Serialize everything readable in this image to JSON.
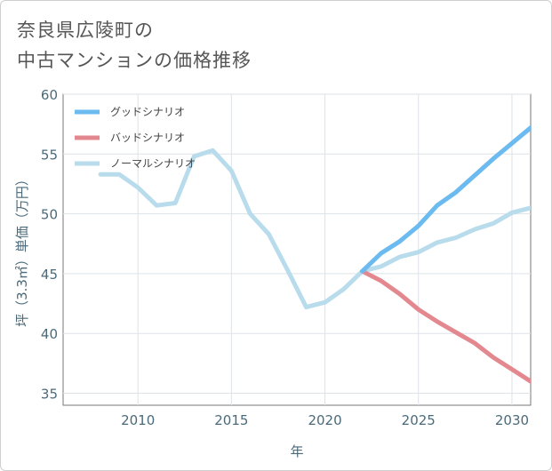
{
  "title_line1": "奈良県広陵町の",
  "title_line2": "中古マンションの価格推移",
  "chart_data": {
    "type": "line",
    "xlabel": "年",
    "ylabel": "坪（3.3㎡）単価（万円）",
    "xlim": [
      2006,
      2031
    ],
    "ylim": [
      34,
      60
    ],
    "x_ticks": [
      2010,
      2015,
      2020,
      2025,
      2030
    ],
    "y_ticks": [
      35,
      40,
      45,
      50,
      55,
      60
    ],
    "x_tick_labels": [
      "2010",
      "2015",
      "2020",
      "2025",
      "2030"
    ],
    "y_tick_labels": [
      "35",
      "40",
      "45",
      "50",
      "55",
      "60"
    ],
    "grid": true,
    "legend_position": "top-left",
    "series": [
      {
        "name": "グッドシナリオ",
        "color": "#6bbaf0",
        "x": [
          2022,
          2023,
          2024,
          2025,
          2026,
          2027,
          2028,
          2029,
          2030,
          2031
        ],
        "y": [
          45.2,
          46.7,
          47.7,
          49.0,
          50.7,
          51.8,
          53.2,
          54.6,
          55.9,
          57.2
        ]
      },
      {
        "name": "バッドシナリオ",
        "color": "#e3888f",
        "x": [
          2022,
          2023,
          2024,
          2025,
          2026,
          2027,
          2028,
          2029,
          2030,
          2031
        ],
        "y": [
          45.2,
          44.4,
          43.3,
          42.0,
          41.0,
          40.1,
          39.2,
          38.0,
          37.0,
          36.0
        ]
      },
      {
        "name": "ノーマルシナリオ",
        "color": "#b9dcec",
        "x": [
          2008,
          2009,
          2010,
          2011,
          2012,
          2013,
          2014,
          2015,
          2016,
          2017,
          2018,
          2019,
          2020,
          2021,
          2022,
          2023,
          2024,
          2025,
          2026,
          2027,
          2028,
          2029,
          2030,
          2031
        ],
        "y": [
          53.3,
          53.3,
          52.2,
          50.7,
          50.9,
          54.8,
          55.3,
          53.6,
          50.0,
          48.3,
          45.3,
          42.2,
          42.6,
          43.7,
          45.2,
          45.6,
          46.4,
          46.8,
          47.6,
          48.0,
          48.7,
          49.2,
          50.1,
          50.5
        ]
      }
    ]
  }
}
